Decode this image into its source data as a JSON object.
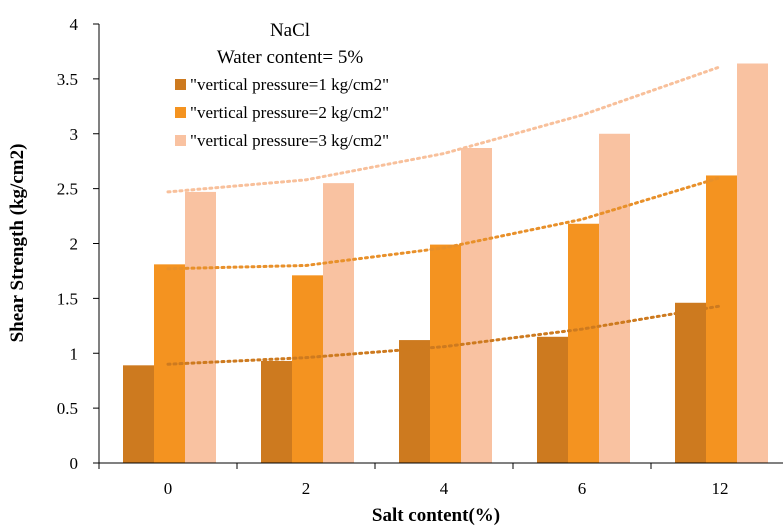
{
  "chart_data": {
    "type": "bar",
    "title": "NaCl",
    "subtitle": "Water content= 5%",
    "xlabel": "Salt content(%)",
    "ylabel": "Shear Strength (kg/cm2)",
    "categories": [
      "0",
      "2",
      "4",
      "6",
      "12"
    ],
    "ylim": [
      0,
      4
    ],
    "yticks": [
      "0",
      "0.5",
      "1",
      "1.5",
      "2",
      "2.5",
      "3",
      "3.5",
      "4"
    ],
    "grid": false,
    "legend_position": "top-center",
    "series": [
      {
        "name": "\"vertical pressure=1 kg/cm2\"",
        "color": "#cd7a1f",
        "trend_color": "#cd7a1f",
        "values": [
          0.89,
          0.93,
          1.12,
          1.15,
          1.46
        ],
        "trendline": [
          0.9,
          0.96,
          1.06,
          1.22,
          1.43
        ]
      },
      {
        "name": "\"vertical pressure=2 kg/cm2\"",
        "color": "#f49320",
        "trend_color": "#e8902a",
        "values": [
          1.81,
          1.71,
          1.99,
          2.18,
          2.62
        ],
        "trendline": [
          1.77,
          1.8,
          1.96,
          2.22,
          2.6
        ]
      },
      {
        "name": "\"vertical pressure=3 kg/cm2\"",
        "color": "#f9c2a1",
        "trend_color": "#f8c09b",
        "values": [
          2.47,
          2.55,
          2.87,
          3.0,
          3.64
        ],
        "trendline": [
          2.47,
          2.58,
          2.82,
          3.17,
          3.61
        ]
      }
    ]
  }
}
